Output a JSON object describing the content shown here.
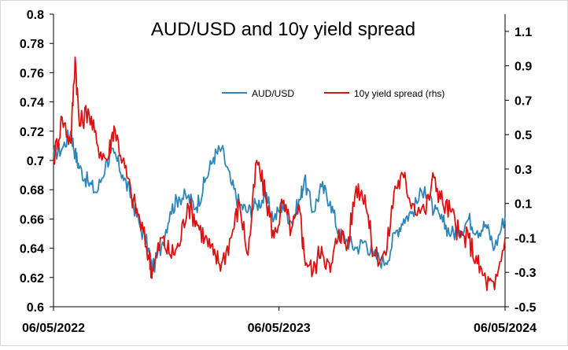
{
  "chart_data": {
    "type": "line",
    "title": "AUD/USD and 10y yield spread",
    "x_tick_labels": [
      "06/05/2022",
      "06/05/2023",
      "06/05/2024"
    ],
    "x_range": [
      "2022-05-06",
      "2024-05-06"
    ],
    "y_left": {
      "min": 0.6,
      "max": 0.8,
      "ticks": [
        "0.6",
        "0.62",
        "0.64",
        "0.66",
        "0.68",
        "0.7",
        "0.72",
        "0.74",
        "0.76",
        "0.78",
        "0.8"
      ]
    },
    "y_right": {
      "min": -0.5,
      "max": 1.2,
      "ticks": [
        "-0.5",
        "-0.3",
        "-0.1",
        "0.1",
        "0.3",
        "0.5",
        "0.7",
        "0.9",
        "1.1"
      ]
    },
    "grid": false,
    "legend_position": "top-center",
    "series": [
      {
        "name": "AUD/USD",
        "axis": "left",
        "color": "#2e86b8",
        "x": [
          "2022-05-06",
          "2022-05-20",
          "2022-06-03",
          "2022-06-10",
          "2022-06-17",
          "2022-07-01",
          "2022-07-15",
          "2022-08-01",
          "2022-08-12",
          "2022-08-26",
          "2022-09-09",
          "2022-09-23",
          "2022-10-07",
          "2022-10-13",
          "2022-10-28",
          "2022-11-11",
          "2022-11-25",
          "2022-12-09",
          "2022-12-23",
          "2023-01-06",
          "2023-01-20",
          "2023-02-02",
          "2023-02-17",
          "2023-03-03",
          "2023-03-17",
          "2023-03-31",
          "2023-04-14",
          "2023-04-28",
          "2023-05-12",
          "2023-05-26",
          "2023-06-09",
          "2023-06-16",
          "2023-06-30",
          "2023-07-14",
          "2023-07-28",
          "2023-08-11",
          "2023-08-25",
          "2023-09-08",
          "2023-09-22",
          "2023-10-06",
          "2023-10-26",
          "2023-11-10",
          "2023-11-24",
          "2023-12-08",
          "2023-12-28",
          "2024-01-12",
          "2024-01-26",
          "2024-02-09",
          "2024-02-23",
          "2024-03-08",
          "2024-03-22",
          "2024-04-05",
          "2024-04-19",
          "2024-05-06"
        ],
        "values": [
          0.705,
          0.708,
          0.72,
          0.705,
          0.695,
          0.685,
          0.678,
          0.7,
          0.705,
          0.69,
          0.675,
          0.655,
          0.64,
          0.625,
          0.642,
          0.665,
          0.675,
          0.675,
          0.668,
          0.685,
          0.702,
          0.708,
          0.685,
          0.67,
          0.665,
          0.67,
          0.675,
          0.66,
          0.67,
          0.658,
          0.673,
          0.687,
          0.665,
          0.682,
          0.672,
          0.65,
          0.645,
          0.64,
          0.645,
          0.635,
          0.63,
          0.65,
          0.66,
          0.665,
          0.682,
          0.665,
          0.658,
          0.65,
          0.652,
          0.66,
          0.652,
          0.656,
          0.64,
          0.662
        ]
      },
      {
        "name": "10y yield spread (rhs)",
        "axis": "right",
        "color": "#dd1111",
        "x": [
          "2022-05-06",
          "2022-05-20",
          "2022-06-03",
          "2022-06-10",
          "2022-06-17",
          "2022-07-01",
          "2022-07-15",
          "2022-08-01",
          "2022-08-12",
          "2022-08-26",
          "2022-09-09",
          "2022-09-23",
          "2022-10-07",
          "2022-10-13",
          "2022-10-28",
          "2022-11-11",
          "2022-11-25",
          "2022-12-09",
          "2022-12-23",
          "2023-01-06",
          "2023-01-20",
          "2023-02-02",
          "2023-02-17",
          "2023-03-03",
          "2023-03-17",
          "2023-03-31",
          "2023-04-14",
          "2023-04-28",
          "2023-05-12",
          "2023-05-26",
          "2023-06-09",
          "2023-06-16",
          "2023-06-30",
          "2023-07-14",
          "2023-07-28",
          "2023-08-11",
          "2023-08-25",
          "2023-09-08",
          "2023-09-22",
          "2023-10-06",
          "2023-10-26",
          "2023-11-10",
          "2023-11-24",
          "2023-12-08",
          "2023-12-28",
          "2024-01-12",
          "2024-01-26",
          "2024-02-09",
          "2024-02-23",
          "2024-03-08",
          "2024-03-22",
          "2024-04-05",
          "2024-04-19",
          "2024-05-06"
        ],
        "values": [
          0.35,
          0.6,
          0.45,
          0.95,
          0.55,
          0.65,
          0.45,
          0.35,
          0.55,
          0.35,
          0.15,
          0.0,
          -0.2,
          -0.3,
          -0.1,
          -0.2,
          -0.15,
          0.1,
          0.0,
          -0.1,
          -0.2,
          -0.25,
          -0.1,
          0.1,
          -0.2,
          0.35,
          0.15,
          -0.1,
          0.1,
          -0.05,
          0.05,
          -0.2,
          -0.3,
          -0.15,
          -0.3,
          -0.05,
          -0.15,
          0.2,
          0.15,
          -0.2,
          -0.2,
          0.2,
          0.25,
          0.1,
          0.05,
          0.25,
          0.1,
          0.05,
          -0.1,
          -0.1,
          -0.25,
          -0.35,
          -0.4,
          -0.1
        ]
      }
    ]
  }
}
